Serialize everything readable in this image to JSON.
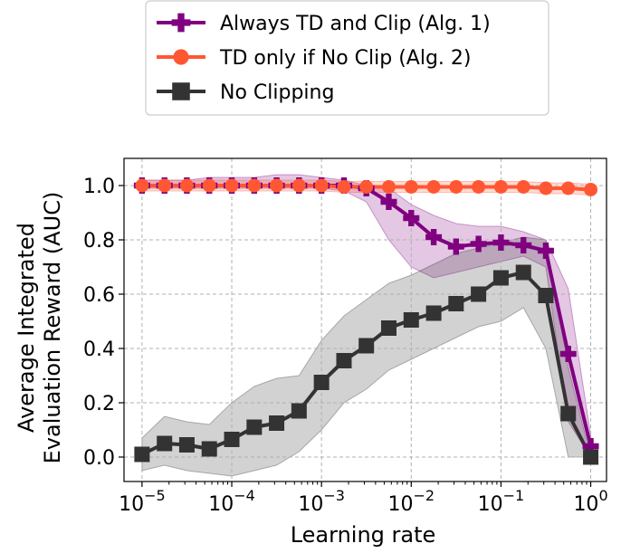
{
  "chart_data": {
    "type": "line",
    "title": "",
    "xlabel": "Learning rate",
    "ylabel_lines": [
      "Average Integrated",
      "Evaluation Reward (AUC)"
    ],
    "x_scale": "log",
    "xlim": [
      6.3e-06,
      1.5
    ],
    "ylim": [
      -0.09,
      1.1
    ],
    "grid": true,
    "legend_placement": "top-center (outside plot)",
    "x_ticks": [
      {
        "value": 1e-05,
        "base": "10",
        "exp": "−5"
      },
      {
        "value": 0.0001,
        "base": "10",
        "exp": "−4"
      },
      {
        "value": 0.001,
        "base": "10",
        "exp": "−3"
      },
      {
        "value": 0.01,
        "base": "10",
        "exp": "−2"
      },
      {
        "value": 0.1,
        "base": "10",
        "exp": "−1"
      },
      {
        "value": 1,
        "base": "10",
        "exp": "0"
      }
    ],
    "y_ticks": [
      {
        "value": 0.0,
        "label": "0.0"
      },
      {
        "value": 0.2,
        "label": "0.2"
      },
      {
        "value": 0.4,
        "label": "0.4"
      },
      {
        "value": 0.6,
        "label": "0.6"
      },
      {
        "value": 0.8,
        "label": "0.8"
      },
      {
        "value": 1.0,
        "label": "1.0"
      }
    ],
    "x": [
      1e-05,
      1.78e-05,
      3.16e-05,
      5.62e-05,
      0.0001,
      0.000178,
      0.000316,
      0.000562,
      0.001,
      0.00178,
      0.00316,
      0.00562,
      0.01,
      0.0178,
      0.0316,
      0.0562,
      0.1,
      0.178,
      0.316,
      0.562,
      1
    ],
    "series": [
      {
        "name": "Always TD and Clip (Alg. 1)",
        "color": "#800080",
        "marker": "plus",
        "values": [
          1.0,
          1.0,
          1.0,
          1.0,
          1.0,
          1.0,
          1.0,
          1.0,
          1.0,
          1.0,
          0.99,
          0.94,
          0.88,
          0.81,
          0.775,
          0.785,
          0.79,
          0.78,
          0.76,
          0.38,
          0.04
        ],
        "band_low": [
          0.99,
          0.99,
          0.99,
          0.99,
          0.99,
          0.99,
          0.99,
          0.99,
          0.99,
          0.98,
          0.94,
          0.8,
          0.7,
          0.66,
          0.68,
          0.7,
          0.72,
          0.74,
          0.7,
          0.13,
          0.0
        ],
        "band_high": [
          1.02,
          1.02,
          1.02,
          1.03,
          1.03,
          1.03,
          1.04,
          1.04,
          1.03,
          1.02,
          1.0,
          0.99,
          0.93,
          0.89,
          0.86,
          0.85,
          0.85,
          0.83,
          0.8,
          0.62,
          0.08
        ]
      },
      {
        "name": "TD only if No Clip (Alg. 2)",
        "color": "#FF5733",
        "marker": "circle",
        "values": [
          1.0,
          1.0,
          1.0,
          1.0,
          1.0,
          1.0,
          1.0,
          1.0,
          1.0,
          0.995,
          0.995,
          0.995,
          0.995,
          0.995,
          0.995,
          0.995,
          0.995,
          0.995,
          0.99,
          0.99,
          0.985
        ],
        "band_low": [
          0.98,
          0.98,
          0.98,
          0.98,
          0.98,
          0.98,
          0.98,
          0.98,
          0.98,
          0.975,
          0.975,
          0.975,
          0.975,
          0.975,
          0.975,
          0.975,
          0.975,
          0.975,
          0.97,
          0.97,
          0.965
        ],
        "band_high": [
          1.02,
          1.02,
          1.02,
          1.02,
          1.02,
          1.02,
          1.02,
          1.02,
          1.02,
          1.015,
          1.015,
          1.015,
          1.015,
          1.015,
          1.015,
          1.015,
          1.015,
          1.015,
          1.01,
          1.01,
          1.005
        ]
      },
      {
        "name": "No Clipping",
        "color": "#333333",
        "marker": "square",
        "values": [
          0.01,
          0.05,
          0.045,
          0.03,
          0.065,
          0.11,
          0.125,
          0.17,
          0.275,
          0.355,
          0.41,
          0.475,
          0.505,
          0.53,
          0.565,
          0.6,
          0.66,
          0.68,
          0.595,
          0.16,
          0.0
        ],
        "band_low": [
          -0.05,
          -0.03,
          -0.05,
          -0.06,
          -0.07,
          -0.05,
          -0.03,
          0.02,
          0.1,
          0.2,
          0.25,
          0.32,
          0.36,
          0.4,
          0.44,
          0.48,
          0.5,
          0.55,
          0.4,
          0.0,
          0.0
        ],
        "band_high": [
          0.07,
          0.15,
          0.13,
          0.12,
          0.2,
          0.26,
          0.29,
          0.3,
          0.43,
          0.52,
          0.58,
          0.64,
          0.67,
          0.71,
          0.75,
          0.77,
          0.79,
          0.81,
          0.8,
          0.33,
          0.0
        ]
      }
    ]
  }
}
